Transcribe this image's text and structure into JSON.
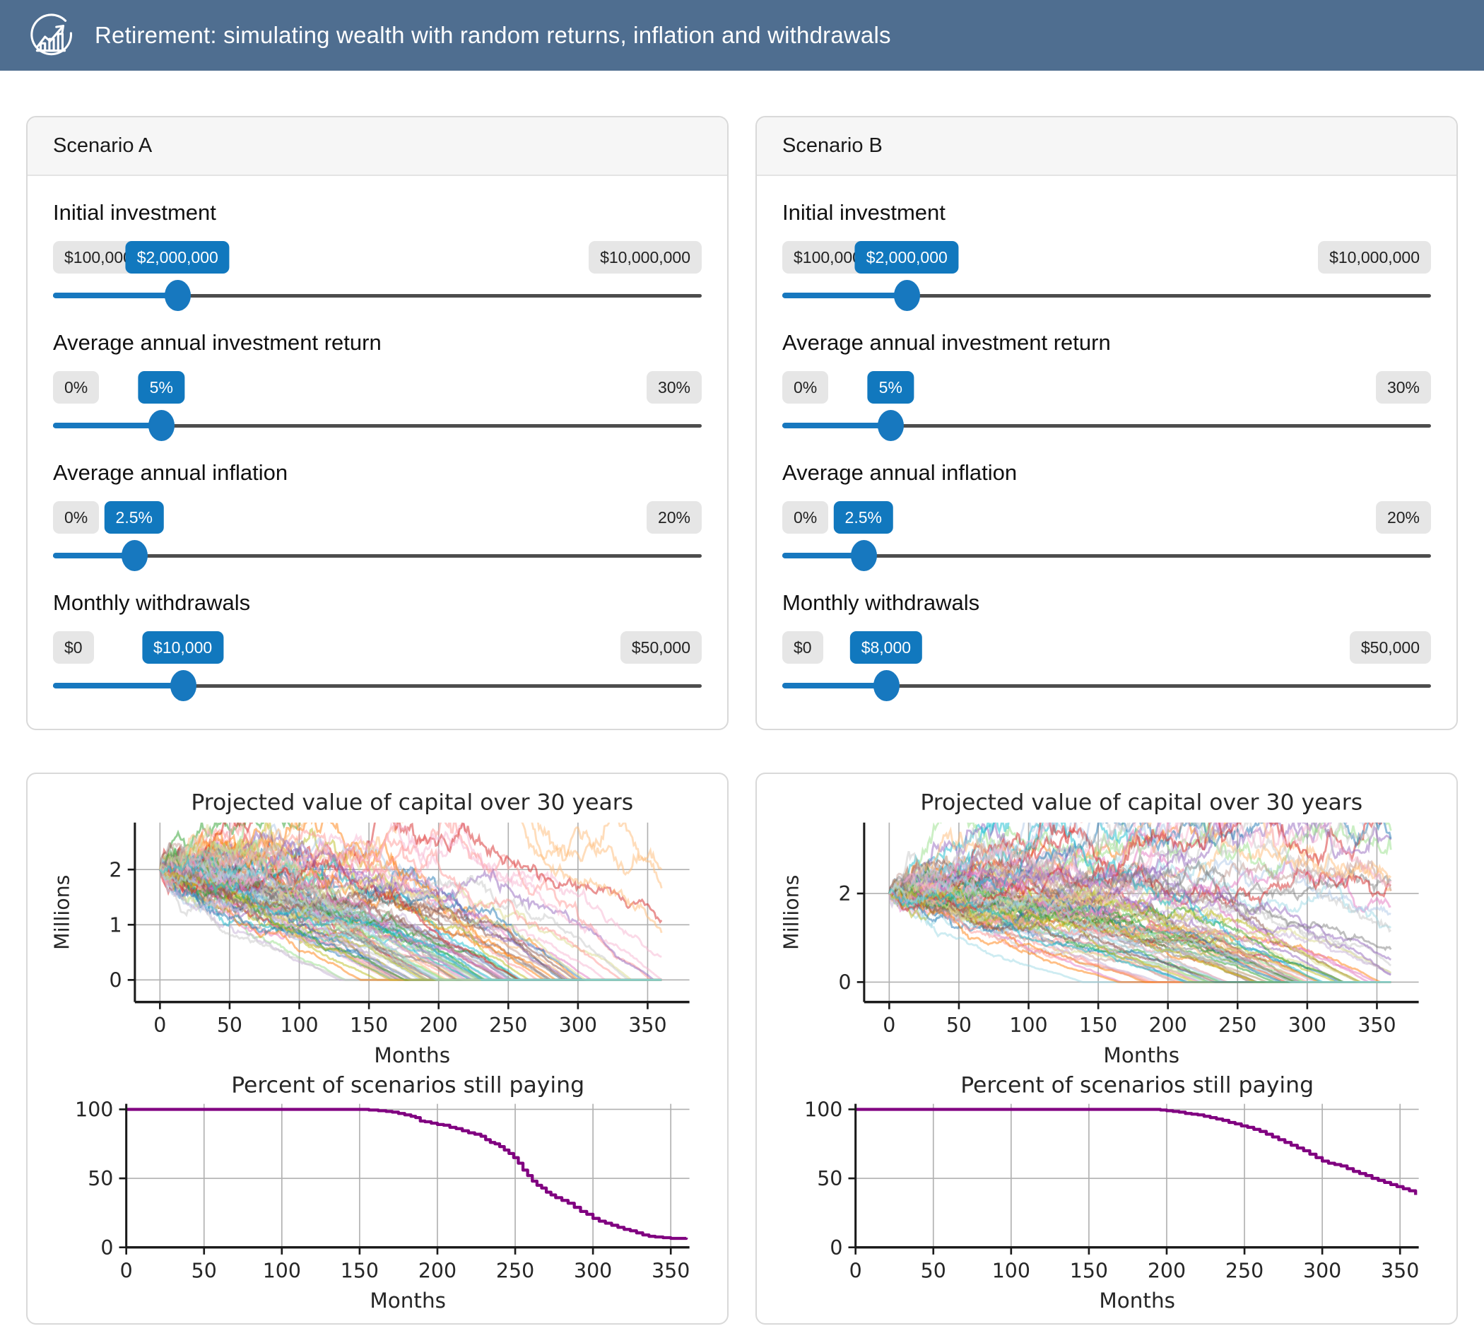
{
  "header": {
    "title": "Retirement: simulating wealth with random returns, inflation and withdrawals",
    "icon": "trend-chart-icon"
  },
  "colors": {
    "header_bg": "#4f6e90",
    "accent_blue": "#1178be",
    "track_gray": "#4d4d4d",
    "badge_gray_bg": "#e6e6e6",
    "percent_line": "#800080",
    "grid": "#b0b0b0",
    "spine": "#1a1a1a"
  },
  "scenarios": [
    {
      "title": "Scenario A",
      "sliders": [
        {
          "label": "Initial investment",
          "min_label": "$100,000",
          "value_label": "$2,000,000",
          "max_label": "$10,000,000",
          "percent": 19.2
        },
        {
          "label": "Average annual investment return",
          "min_label": "0%",
          "value_label": "5%",
          "max_label": "30%",
          "percent": 16.7
        },
        {
          "label": "Average annual inflation",
          "min_label": "0%",
          "value_label": "2.5%",
          "max_label": "20%",
          "percent": 12.5
        },
        {
          "label": "Monthly withdrawals",
          "min_label": "$0",
          "value_label": "$10,000",
          "max_label": "$50,000",
          "percent": 20
        }
      ]
    },
    {
      "title": "Scenario B",
      "sliders": [
        {
          "label": "Initial investment",
          "min_label": "$100,000",
          "value_label": "$2,000,000",
          "max_label": "$10,000,000",
          "percent": 19.2
        },
        {
          "label": "Average annual investment return",
          "min_label": "0%",
          "value_label": "5%",
          "max_label": "30%",
          "percent": 16.7
        },
        {
          "label": "Average annual inflation",
          "min_label": "0%",
          "value_label": "2.5%",
          "max_label": "20%",
          "percent": 12.5
        },
        {
          "label": "Monthly withdrawals",
          "min_label": "$0",
          "value_label": "$8,000",
          "max_label": "$50,000",
          "percent": 16
        }
      ]
    }
  ],
  "chart_data": [
    {
      "type": "line",
      "subtype": "monte-carlo-paths",
      "scenario": "A",
      "title": "Projected value of capital over 30 years",
      "xlabel": "Months",
      "ylabel": "Millions",
      "xlim": [
        -18,
        380
      ],
      "ylim": [
        -0.4,
        2.85
      ],
      "xticks": [
        0,
        50,
        100,
        150,
        200,
        250,
        300,
        350
      ],
      "yticks": [
        0,
        1,
        2
      ],
      "grid": true,
      "legend": "none",
      "n_series": 100,
      "months": 360,
      "start_millions": 2.0,
      "simulation": {
        "seed": 11,
        "monthly_return_mean": 0.00417,
        "monthly_return_sd": 0.03,
        "monthly_withdrawal_millions": 0.01,
        "annual_inflation": 0.025,
        "clamp_at_zero": true
      },
      "line_alpha": 0.5,
      "palette": [
        "#1f77b4",
        "#aec7e8",
        "#ff7f0e",
        "#ffbb78",
        "#2ca02c",
        "#98df8a",
        "#d62728",
        "#ff9896",
        "#9467bd",
        "#c5b0d5",
        "#8c564b",
        "#c49c94",
        "#e377c2",
        "#f7b6d2",
        "#7f7f7f",
        "#c7c7c7",
        "#bcbd22",
        "#dbdb8d",
        "#17becf",
        "#9edae5"
      ]
    },
    {
      "type": "line",
      "subtype": "step",
      "scenario": "A",
      "title": "Percent of scenarios still paying",
      "xlabel": "Months",
      "ylabel": "",
      "xlim": [
        0,
        362
      ],
      "ylim": [
        0,
        104
      ],
      "xticks": [
        0,
        50,
        100,
        150,
        200,
        250,
        300,
        350
      ],
      "yticks": [
        0,
        50,
        100
      ],
      "grid": true,
      "legend": "none",
      "line_color": "#800080",
      "series": [
        {
          "name": "percent_still_paying",
          "x": [
            0,
            150,
            156,
            162,
            167,
            171,
            175,
            179,
            183,
            186,
            189,
            192,
            196,
            200,
            204,
            208,
            212,
            216,
            220,
            224,
            228,
            231,
            234,
            237,
            240,
            243,
            246,
            249,
            252,
            255,
            258,
            261,
            264,
            267,
            270,
            273,
            276,
            280,
            284,
            288,
            292,
            296,
            300,
            304,
            308,
            312,
            316,
            320,
            324,
            328,
            332,
            336,
            340,
            345,
            350,
            355,
            360
          ],
          "y": [
            100,
            100,
            99.5,
            99,
            98.5,
            98,
            97,
            96,
            95,
            94,
            91.5,
            91,
            90,
            89,
            88.5,
            87,
            86,
            84.5,
            83,
            82,
            80.5,
            78,
            76,
            75,
            73,
            70.5,
            68,
            65,
            61,
            56,
            52,
            48,
            45,
            43,
            40,
            38,
            36,
            34,
            32,
            29,
            26,
            24,
            21,
            19,
            17.5,
            16,
            14.5,
            13,
            12,
            10.5,
            9,
            8,
            7.5,
            7,
            6.5,
            6.5,
            7
          ]
        }
      ]
    },
    {
      "type": "line",
      "subtype": "monte-carlo-paths",
      "scenario": "B",
      "title": "Projected value of capital over 30 years",
      "xlabel": "Months",
      "ylabel": "Millions",
      "xlim": [
        -18,
        380
      ],
      "ylim": [
        -0.45,
        3.6
      ],
      "xticks": [
        0,
        50,
        100,
        150,
        200,
        250,
        300,
        350
      ],
      "yticks": [
        0,
        2
      ],
      "grid": true,
      "legend": "none",
      "n_series": 100,
      "months": 360,
      "start_millions": 2.0,
      "simulation": {
        "seed": 97,
        "monthly_return_mean": 0.00417,
        "monthly_return_sd": 0.03,
        "monthly_withdrawal_millions": 0.008,
        "annual_inflation": 0.025,
        "clamp_at_zero": true
      },
      "line_alpha": 0.5,
      "palette": [
        "#1f77b4",
        "#aec7e8",
        "#ff7f0e",
        "#ffbb78",
        "#2ca02c",
        "#98df8a",
        "#d62728",
        "#ff9896",
        "#9467bd",
        "#c5b0d5",
        "#8c564b",
        "#c49c94",
        "#e377c2",
        "#f7b6d2",
        "#7f7f7f",
        "#c7c7c7",
        "#bcbd22",
        "#dbdb8d",
        "#17becf",
        "#9edae5"
      ]
    },
    {
      "type": "line",
      "subtype": "step",
      "scenario": "B",
      "title": "Percent of scenarios still paying",
      "xlabel": "Months",
      "ylabel": "",
      "xlim": [
        0,
        362
      ],
      "ylim": [
        0,
        104
      ],
      "xticks": [
        0,
        50,
        100,
        150,
        200,
        250,
        300,
        350
      ],
      "yticks": [
        0,
        50,
        100
      ],
      "grid": true,
      "legend": "none",
      "line_color": "#800080",
      "series": [
        {
          "name": "percent_still_paying",
          "x": [
            0,
            190,
            196,
            200,
            204,
            208,
            212,
            216,
            220,
            224,
            228,
            232,
            236,
            240,
            244,
            248,
            252,
            256,
            260,
            264,
            268,
            272,
            276,
            280,
            284,
            288,
            292,
            296,
            300,
            304,
            308,
            312,
            316,
            320,
            324,
            328,
            332,
            336,
            340,
            344,
            348,
            352,
            356,
            360
          ],
          "y": [
            100,
            100,
            99.5,
            99,
            98.5,
            98,
            97,
            96.5,
            96,
            95,
            94,
            93,
            92,
            90.5,
            89.5,
            88,
            87,
            85.5,
            84,
            82,
            80,
            78,
            76,
            74,
            72,
            70,
            67.5,
            65,
            62.5,
            61,
            60,
            59,
            57,
            55,
            53.5,
            52,
            50,
            48.5,
            47,
            45.5,
            44,
            42.5,
            41,
            38
          ]
        }
      ]
    }
  ]
}
